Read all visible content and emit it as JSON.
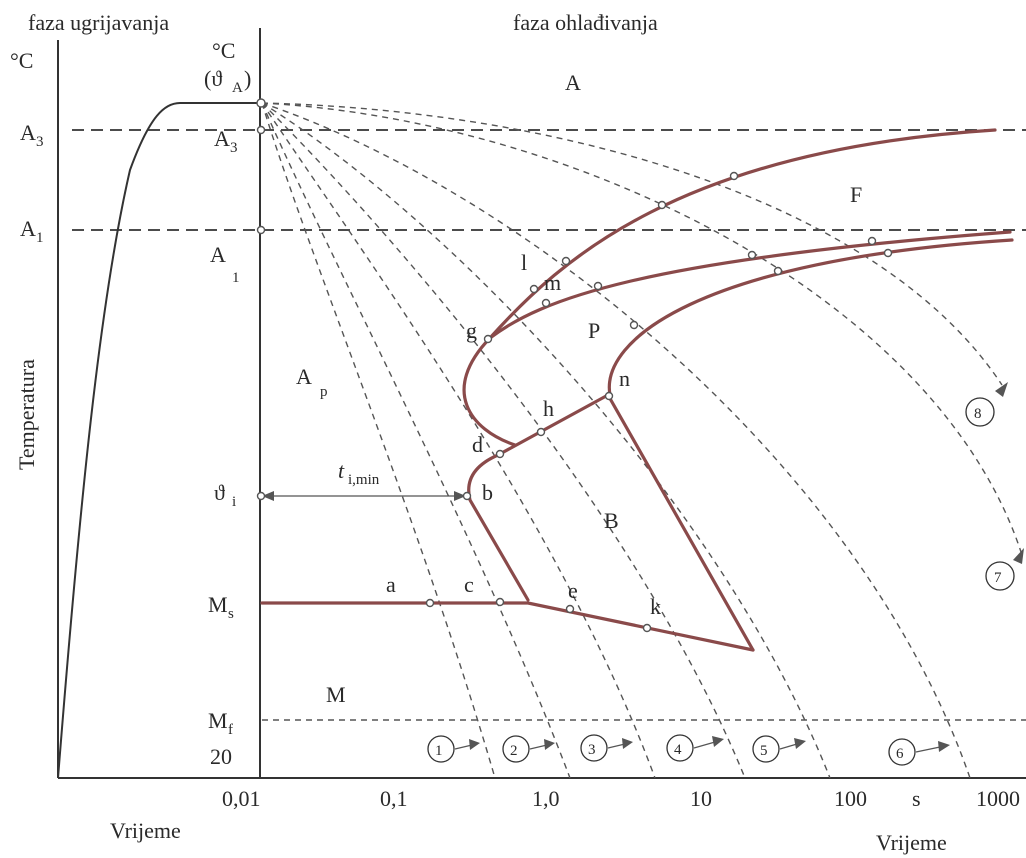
{
  "headers": {
    "heating_phase": "faza ugrijavanja",
    "cooling_phase": "faza ohlađivanja"
  },
  "left_axis": {
    "unit": "°C",
    "ylabel": "Temperatura",
    "xlabel": "Vrijeme",
    "A3": "A",
    "A3_sub": "3",
    "A1": "A",
    "A1_sub": "1"
  },
  "right_axis": {
    "unit": "°C",
    "theta_A": "(ϑ",
    "theta_A_sub": "A",
    "theta_A_close": ")",
    "A3": "A",
    "A3_sub": "3",
    "A1": "A",
    "A1_sub": "1",
    "theta_i": "ϑ",
    "theta_i_sub": "i",
    "Ms": "M",
    "Ms_sub": "s",
    "Mf": "M",
    "Mf_sub": "f",
    "bottom_temp": "20",
    "time_unit": "s",
    "xlabel": "Vrijeme",
    "time_ticks": [
      "0,01",
      "0,1",
      "1,0",
      "10",
      "100",
      "1000"
    ]
  },
  "regions": {
    "austenite": "A",
    "undercooled_austenite": "A",
    "undercooled_austenite_sub": "p",
    "ferrite": "F",
    "pearlite": "P",
    "bainite": "B",
    "martensite": "M"
  },
  "incubation": {
    "label": "t",
    "label_sub": "i,min"
  },
  "points": [
    "a",
    "b",
    "c",
    "d",
    "e",
    "g",
    "h",
    "k",
    "l",
    "m",
    "n"
  ],
  "cooling_curves": [
    "1",
    "2",
    "3",
    "4",
    "5",
    "6",
    "7",
    "8"
  ]
}
